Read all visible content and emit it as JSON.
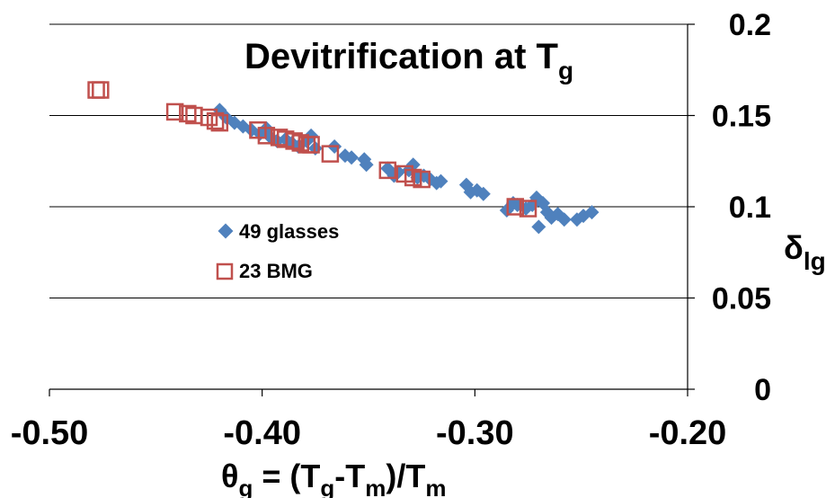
{
  "chart_data": {
    "type": "scatter",
    "title": "Devitrification at T",
    "title_subscript": "g",
    "xlabel_parts": {
      "symbol": "θ",
      "symbol_sub": "g",
      "eq": " = (T",
      "sub1": "g",
      "mid": "-T",
      "sub2": "m",
      "close": ")/T",
      "sub3": "m"
    },
    "ylabel": "δ",
    "ylabel_sub": "lg",
    "xlim": [
      -0.5,
      -0.2
    ],
    "ylim": [
      0,
      0.2
    ],
    "x_ticks": [
      "-0.50",
      "-0.40",
      "-0.30",
      "-0.20"
    ],
    "x_tick_values": [
      -0.5,
      -0.4,
      -0.3,
      -0.2
    ],
    "y_ticks": [
      "0",
      "0.05",
      "0.1",
      "0.15",
      "0.2"
    ],
    "y_tick_values": [
      0,
      0.05,
      0.1,
      0.15,
      0.2
    ],
    "grid": "horizontal",
    "legend_position": "center-left",
    "colors": {
      "glasses": "#4f81bd",
      "bmg": "#c0504d"
    },
    "series": [
      {
        "name": "49 glasses",
        "marker": "diamond",
        "points": [
          [
            -0.42,
            0.153
          ],
          [
            -0.417,
            0.149
          ],
          [
            -0.413,
            0.146
          ],
          [
            -0.409,
            0.144
          ],
          [
            -0.405,
            0.142
          ],
          [
            -0.401,
            0.14
          ],
          [
            -0.398,
            0.143
          ],
          [
            -0.396,
            0.138
          ],
          [
            -0.393,
            0.136
          ],
          [
            -0.389,
            0.137
          ],
          [
            -0.386,
            0.135
          ],
          [
            -0.383,
            0.133
          ],
          [
            -0.379,
            0.136
          ],
          [
            -0.377,
            0.139
          ],
          [
            -0.375,
            0.132
          ],
          [
            -0.366,
            0.133
          ],
          [
            -0.361,
            0.128
          ],
          [
            -0.358,
            0.127
          ],
          [
            -0.352,
            0.126
          ],
          [
            -0.351,
            0.123
          ],
          [
            -0.341,
            0.121
          ],
          [
            -0.338,
            0.117
          ],
          [
            -0.336,
            0.119
          ],
          [
            -0.331,
            0.12
          ],
          [
            -0.329,
            0.123
          ],
          [
            -0.327,
            0.116
          ],
          [
            -0.324,
            0.117
          ],
          [
            -0.321,
            0.115
          ],
          [
            -0.318,
            0.113
          ],
          [
            -0.316,
            0.114
          ],
          [
            -0.304,
            0.112
          ],
          [
            -0.302,
            0.108
          ],
          [
            -0.299,
            0.109
          ],
          [
            -0.296,
            0.107
          ],
          [
            -0.285,
            0.098
          ],
          [
            -0.282,
            0.102
          ],
          [
            -0.28,
            0.101
          ],
          [
            -0.276,
            0.099
          ],
          [
            -0.273,
            0.101
          ],
          [
            -0.271,
            0.105
          ],
          [
            -0.27,
            0.089
          ],
          [
            -0.268,
            0.102
          ],
          [
            -0.266,
            0.097
          ],
          [
            -0.264,
            0.094
          ],
          [
            -0.261,
            0.096
          ],
          [
            -0.258,
            0.093
          ],
          [
            -0.252,
            0.093
          ],
          [
            -0.249,
            0.095
          ],
          [
            -0.245,
            0.097
          ]
        ]
      },
      {
        "name": "23 BMG",
        "marker": "open-square",
        "points": [
          [
            -0.478,
            0.164
          ],
          [
            -0.476,
            0.164
          ],
          [
            -0.441,
            0.152
          ],
          [
            -0.435,
            0.151
          ],
          [
            -0.432,
            0.15
          ],
          [
            -0.425,
            0.149
          ],
          [
            -0.422,
            0.147
          ],
          [
            -0.42,
            0.146
          ],
          [
            -0.402,
            0.142
          ],
          [
            -0.398,
            0.139
          ],
          [
            -0.392,
            0.138
          ],
          [
            -0.389,
            0.137
          ],
          [
            -0.385,
            0.136
          ],
          [
            -0.382,
            0.135
          ],
          [
            -0.379,
            0.134
          ],
          [
            -0.377,
            0.134
          ],
          [
            -0.368,
            0.129
          ],
          [
            -0.341,
            0.12
          ],
          [
            -0.333,
            0.118
          ],
          [
            -0.329,
            0.116
          ],
          [
            -0.325,
            0.115
          ],
          [
            -0.281,
            0.1
          ],
          [
            -0.275,
            0.099
          ]
        ]
      }
    ]
  }
}
